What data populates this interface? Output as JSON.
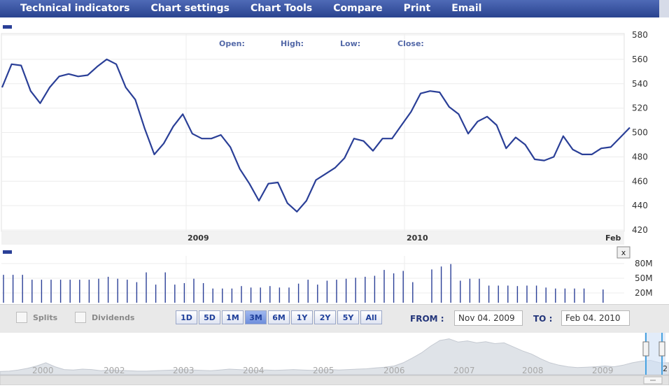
{
  "menu": [
    "Technical indicators",
    "Chart settings",
    "Chart Tools",
    "Compare",
    "Print",
    "Email"
  ],
  "chart_data": [
    {
      "type": "line",
      "name": "price",
      "ohlc_labels": [
        "Open:",
        "High:",
        "Low:",
        "Close:"
      ],
      "y_ticks": [
        580,
        560,
        540,
        520,
        500,
        480,
        460,
        440,
        420
      ],
      "ylim": [
        420,
        580
      ],
      "x_labels": [
        "2009",
        "2010",
        "Feb"
      ],
      "values": [
        537,
        556,
        555,
        534,
        524,
        537,
        546,
        548,
        546,
        547,
        554,
        560,
        556,
        537,
        527,
        503,
        482,
        491,
        505,
        515,
        499,
        495,
        495,
        498,
        488,
        470,
        458,
        444,
        458,
        459,
        442,
        435,
        444,
        461,
        466,
        471,
        479,
        495,
        493,
        485,
        495,
        495,
        506,
        517,
        532,
        534,
        533,
        521,
        515,
        499,
        509,
        513,
        506,
        487,
        496,
        490,
        478,
        477,
        480,
        497,
        486,
        482,
        482,
        487,
        488,
        496,
        504
      ],
      "grid": true
    },
    {
      "type": "bar",
      "name": "volume",
      "y_ticks": [
        "80M",
        "50M",
        "20M"
      ],
      "ylim": [
        0,
        90
      ],
      "values": [
        57,
        57,
        57,
        47,
        47,
        47,
        47,
        47,
        47,
        47,
        49,
        53,
        49,
        47,
        42,
        62,
        37,
        62,
        37,
        40,
        49,
        40,
        29,
        29,
        29,
        34,
        31,
        31,
        34,
        31,
        31,
        39,
        47,
        37,
        45,
        47,
        49,
        51,
        53,
        55,
        67,
        60,
        65,
        42,
        63,
        68,
        74,
        79,
        45,
        49,
        49,
        35,
        35,
        35,
        34,
        35,
        35,
        31,
        29,
        29,
        29,
        29,
        27,
        27,
        26,
        26
      ],
      "gaps": [
        44,
        62,
        64,
        65
      ]
    }
  ],
  "close_button": "x",
  "checks": {
    "splits": "Splits",
    "dividends": "Dividends"
  },
  "ranges": [
    "1D",
    "5D",
    "1M",
    "3M",
    "6M",
    "1Y",
    "2Y",
    "5Y",
    "All"
  ],
  "active_range": "3M",
  "from_label": "FROM :",
  "from_value": "Nov 04. 2009",
  "to_label": "TO :",
  "to_value": "Feb 04. 2010",
  "navigator": {
    "years": [
      "2000",
      "2002",
      "2003",
      "2004",
      "2005",
      "2006",
      "2007",
      "2008",
      "2009"
    ],
    "edge_label": "2"
  },
  "colors": {
    "line": "#2a3f97",
    "menubar": "#2f4a9a"
  }
}
